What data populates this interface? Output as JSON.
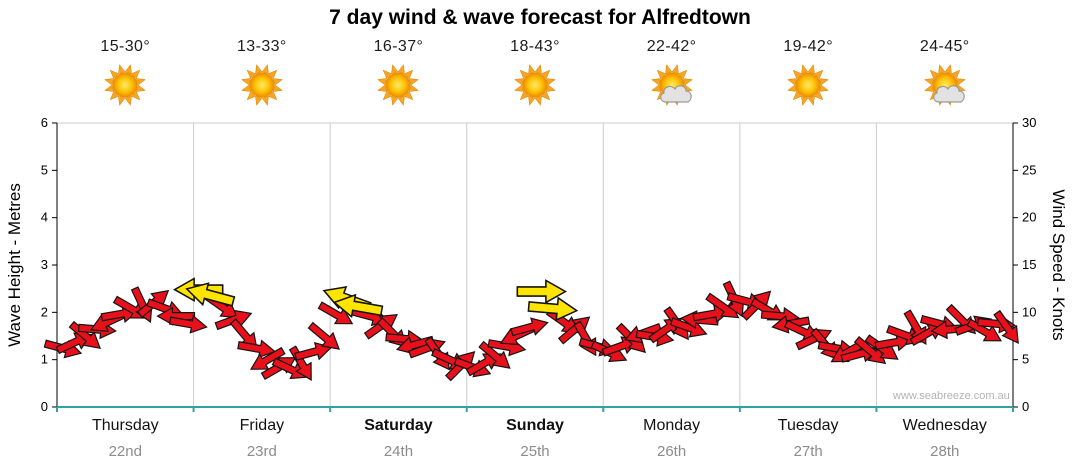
{
  "title": "7 day wind & wave forecast for Alfredtown",
  "watermark": "www.seabreeze.com.au",
  "axes": {
    "left_title": "Wave Height - Metres",
    "right_title": "Wind Speed - Knots",
    "left_ticks": [
      0,
      1,
      2,
      3,
      4,
      5,
      6
    ],
    "right_ticks": [
      0,
      5,
      10,
      15,
      20,
      25,
      30
    ]
  },
  "days": [
    {
      "name": "Thursday",
      "date": "22nd",
      "temp": "15-30°",
      "icon": "sun",
      "bold": false
    },
    {
      "name": "Friday",
      "date": "23rd",
      "temp": "13-33°",
      "icon": "sun",
      "bold": false
    },
    {
      "name": "Saturday",
      "date": "24th",
      "temp": "16-37°",
      "icon": "sun",
      "bold": true
    },
    {
      "name": "Sunday",
      "date": "25th",
      "temp": "18-43°",
      "icon": "sun",
      "bold": true
    },
    {
      "name": "Monday",
      "date": "26th",
      "temp": "22-42°",
      "icon": "sun-cloud",
      "bold": false
    },
    {
      "name": "Tuesday",
      "date": "27th",
      "temp": "19-42°",
      "icon": "sun",
      "bold": false
    },
    {
      "name": "Wednesday",
      "date": "28th",
      "temp": "24-45°",
      "icon": "sun-cloud",
      "bold": false
    }
  ],
  "colors": {
    "arrow_red": "#e8101a",
    "arrow_yellow": "#ffe400",
    "arrow_outline": "#141414",
    "axis_bottom": "#2fa3a3",
    "grid": "#cccccc",
    "axis_line": "#000000",
    "tick_label": "#000000",
    "date_text": "#8c8c8c"
  },
  "chart_data": {
    "type": "scatter",
    "subtype": "wind-direction-arrows",
    "title": "7 day wind & wave forecast for Alfredtown",
    "ylabel_left": "Wave Height - Metres",
    "ylabel_right": "Wind Speed - Knots",
    "ylim_left_metres": [
      0,
      6
    ],
    "ylim_right_knots": [
      0,
      30
    ],
    "grid": "vertical-day-separators-only",
    "legend": "none",
    "watermark": "www.seabreeze.com.au",
    "x_categories": [
      "Thursday 22nd",
      "Friday 23rd",
      "Saturday 24th",
      "Sunday 25th",
      "Monday 26th",
      "Tuesday 27th",
      "Wednesday 28th"
    ],
    "samples_per_day": 12,
    "wind_knots": [
      6.2,
      6.8,
      7.5,
      8.2,
      9.0,
      9.8,
      10.4,
      10.8,
      11.0,
      10.4,
      9.6,
      8.8,
      12.4,
      11.8,
      10.6,
      9.2,
      7.6,
      6.2,
      5.0,
      4.2,
      4.0,
      4.6,
      5.8,
      7.4,
      9.8,
      11.4,
      10.6,
      9.6,
      8.6,
      7.8,
      7.2,
      6.6,
      6.2,
      5.6,
      5.0,
      4.4,
      4.2,
      4.6,
      5.4,
      6.4,
      7.6,
      8.4,
      12.2,
      10.4,
      9.0,
      8.2,
      7.2,
      6.4,
      5.8,
      6.4,
      7.2,
      7.8,
      7.4,
      8.2,
      8.8,
      8.4,
      9.2,
      9.8,
      10.6,
      11.4,
      11.2,
      10.8,
      10.2,
      9.6,
      8.8,
      8.0,
      7.2,
      6.6,
      6.2,
      5.8,
      5.6,
      5.9,
      6.2,
      6.8,
      7.6,
      8.4,
      7.8,
      8.8,
      8.2,
      9.2,
      8.6,
      8.0,
      8.8,
      8.4
    ],
    "angles_deg": [
      15,
      -25,
      40,
      5,
      155,
      -10,
      30,
      65,
      -40,
      20,
      180,
      10,
      180,
      195,
      35,
      -20,
      50,
      10,
      150,
      -30,
      25,
      60,
      -15,
      40,
      30,
      200,
      190,
      15,
      -35,
      45,
      5,
      165,
      -20,
      55,
      25,
      -45,
      20,
      -30,
      40,
      10,
      155,
      -15,
      0,
      5,
      35,
      -40,
      60,
      15,
      25,
      -20,
      45,
      160,
      10,
      -35,
      55,
      20,
      185,
      -10,
      35,
      65,
      15,
      -45,
      30,
      5,
      170,
      25,
      -25,
      50,
      10,
      150,
      -15,
      40,
      35,
      -10,
      20,
      60,
      -30,
      15,
      175,
      45,
      -20,
      30,
      5,
      55
    ],
    "yellow_indices": [
      12,
      13,
      25,
      26,
      42,
      43
    ]
  }
}
